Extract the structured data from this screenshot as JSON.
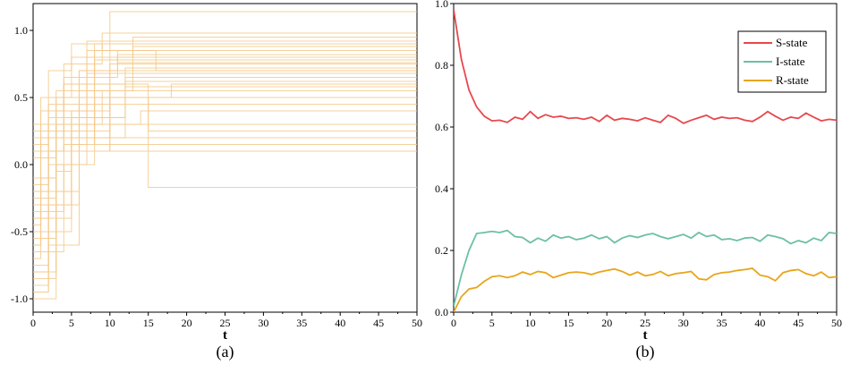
{
  "chart_data": [
    {
      "type": "line",
      "panel_label": "(a)",
      "xlabel": "t",
      "ylabel": "",
      "xlim": [
        0,
        50
      ],
      "ylim": [
        -1.1,
        1.2
      ],
      "xticks": [
        "0",
        "5",
        "10",
        "15",
        "20",
        "25",
        "30",
        "35",
        "40",
        "45",
        "50"
      ],
      "yticks": [
        "-1.0",
        "-0.5",
        "0.0",
        "0.5",
        "1.0"
      ],
      "line_color": "#f5c98a",
      "series_style": "step",
      "series": [
        {
          "x": [
            0,
            2,
            5,
            10,
            50
          ],
          "y": [
            -0.95,
            -0.3,
            0.4,
            0.75,
            0.75
          ]
        },
        {
          "x": [
            0,
            3,
            6,
            10,
            50
          ],
          "y": [
            -0.8,
            0.1,
            0.7,
            1.14,
            1.14
          ]
        },
        {
          "x": [
            0,
            1,
            4,
            8,
            50
          ],
          "y": [
            -0.6,
            0.2,
            0.6,
            0.9,
            0.9
          ]
        },
        {
          "x": [
            0,
            2,
            6,
            15,
            50
          ],
          "y": [
            -0.2,
            0.3,
            0.5,
            -0.17,
            -0.17
          ]
        },
        {
          "x": [
            0,
            3,
            7,
            15,
            50
          ],
          "y": [
            -0.4,
            0.0,
            0.45,
            0.25,
            0.25
          ]
        },
        {
          "x": [
            0,
            2,
            5,
            12,
            50
          ],
          "y": [
            -0.9,
            -0.5,
            0.35,
            0.62,
            0.62
          ]
        },
        {
          "x": [
            0,
            1,
            3,
            9,
            50
          ],
          "y": [
            -0.7,
            -0.1,
            0.3,
            0.55,
            0.55
          ]
        },
        {
          "x": [
            0,
            4,
            8,
            16,
            50
          ],
          "y": [
            0.1,
            0.6,
            0.85,
            0.7,
            0.7
          ]
        },
        {
          "x": [
            0,
            2,
            6,
            11,
            50
          ],
          "y": [
            -0.3,
            0.2,
            0.7,
            0.8,
            0.8
          ]
        },
        {
          "x": [
            0,
            3,
            5,
            10,
            50
          ],
          "y": [
            -1.0,
            -0.4,
            0.2,
            0.5,
            0.5
          ]
        },
        {
          "x": [
            0,
            2,
            4,
            7,
            50
          ],
          "y": [
            -0.5,
            0.1,
            0.45,
            0.68,
            0.68
          ]
        },
        {
          "x": [
            0,
            1,
            5,
            13,
            50
          ],
          "y": [
            0.2,
            0.5,
            0.8,
            0.95,
            0.95
          ]
        },
        {
          "x": [
            0,
            3,
            6,
            14,
            50
          ],
          "y": [
            -0.85,
            -0.2,
            0.3,
            0.4,
            0.4
          ]
        },
        {
          "x": [
            0,
            2,
            7,
            12,
            50
          ],
          "y": [
            -0.15,
            0.35,
            0.6,
            0.72,
            0.72
          ]
        },
        {
          "x": [
            0,
            4,
            8,
            18,
            50
          ],
          "y": [
            -0.65,
            0.0,
            0.5,
            0.6,
            0.6
          ]
        },
        {
          "x": [
            0,
            2,
            5,
            9,
            50
          ],
          "y": [
            0.3,
            0.7,
            0.9,
            0.85,
            0.85
          ]
        },
        {
          "x": [
            0,
            1,
            3,
            6,
            50
          ],
          "y": [
            -0.45,
            0.05,
            0.4,
            0.2,
            0.2
          ]
        },
        {
          "x": [
            0,
            3,
            6,
            10,
            50
          ],
          "y": [
            -0.25,
            0.25,
            0.55,
            0.1,
            0.1
          ]
        },
        {
          "x": [
            0,
            2,
            5,
            8,
            50
          ],
          "y": [
            -0.75,
            -0.3,
            0.15,
            0.78,
            0.78
          ]
        },
        {
          "x": [
            0,
            1,
            4,
            11,
            50
          ],
          "y": [
            0.05,
            0.4,
            0.65,
            0.82,
            0.82
          ]
        },
        {
          "x": [
            0,
            3,
            5,
            12,
            50
          ],
          "y": [
            -0.55,
            -0.05,
            0.35,
            0.65,
            0.65
          ]
        },
        {
          "x": [
            0,
            2,
            6,
            10,
            50
          ],
          "y": [
            -0.95,
            -0.6,
            0.1,
            0.3,
            0.3
          ]
        },
        {
          "x": [
            0,
            4,
            7,
            13,
            50
          ],
          "y": [
            -0.35,
            0.15,
            0.55,
            0.88,
            0.88
          ]
        },
        {
          "x": [
            0,
            2,
            4,
            9,
            50
          ],
          "y": [
            0.15,
            0.45,
            0.75,
            0.98,
            0.98
          ]
        },
        {
          "x": [
            0,
            3,
            8,
            15,
            50
          ],
          "y": [
            -0.1,
            0.3,
            0.6,
            0.45,
            0.45
          ]
        },
        {
          "x": [
            0,
            1,
            5,
            10,
            50
          ],
          "y": [
            -0.6,
            -0.2,
            0.25,
            0.7,
            0.7
          ]
        },
        {
          "x": [
            0,
            2,
            6,
            12,
            50
          ],
          "y": [
            -0.8,
            -0.3,
            0.2,
            0.58,
            0.58
          ]
        },
        {
          "x": [
            0,
            3,
            7,
            11,
            50
          ],
          "y": [
            0.25,
            0.55,
            0.85,
            0.76,
            0.76
          ]
        },
        {
          "x": [
            0,
            2,
            5,
            8,
            50
          ],
          "y": [
            -0.4,
            0.0,
            0.4,
            0.15,
            0.15
          ]
        },
        {
          "x": [
            0,
            1,
            3,
            7,
            50
          ],
          "y": [
            -0.2,
            0.2,
            0.5,
            0.92,
            0.92
          ]
        }
      ]
    },
    {
      "type": "line",
      "panel_label": "(b)",
      "xlabel": "t",
      "ylabel": "",
      "xlim": [
        0,
        50
      ],
      "ylim": [
        0,
        1.0
      ],
      "xticks": [
        "0",
        "5",
        "10",
        "15",
        "20",
        "25",
        "30",
        "35",
        "40",
        "45",
        "50"
      ],
      "yticks": [
        "0.0",
        "0.2",
        "0.4",
        "0.6",
        "0.8",
        "1.0"
      ],
      "legend_position": "top-right",
      "x": [
        0,
        1,
        2,
        3,
        4,
        5,
        6,
        7,
        8,
        9,
        10,
        11,
        12,
        13,
        14,
        15,
        16,
        17,
        18,
        19,
        20,
        21,
        22,
        23,
        24,
        25,
        26,
        27,
        28,
        29,
        30,
        31,
        32,
        33,
        34,
        35,
        36,
        37,
        38,
        39,
        40,
        41,
        42,
        43,
        44,
        45,
        46,
        47,
        48,
        49,
        50
      ],
      "series": [
        {
          "name": "S-state",
          "color": "#e8474c",
          "values": [
            0.98,
            0.82,
            0.72,
            0.665,
            0.635,
            0.62,
            0.622,
            0.615,
            0.632,
            0.625,
            0.65,
            0.628,
            0.64,
            0.632,
            0.635,
            0.628,
            0.63,
            0.625,
            0.632,
            0.618,
            0.638,
            0.622,
            0.628,
            0.625,
            0.62,
            0.63,
            0.622,
            0.615,
            0.638,
            0.628,
            0.612,
            0.622,
            0.63,
            0.638,
            0.625,
            0.632,
            0.628,
            0.63,
            0.622,
            0.618,
            0.632,
            0.65,
            0.635,
            0.622,
            0.632,
            0.628,
            0.645,
            0.632,
            0.62,
            0.625,
            0.622
          ]
        },
        {
          "name": "I-state",
          "color": "#6dbfa6",
          "values": [
            0.02,
            0.12,
            0.2,
            0.255,
            0.258,
            0.262,
            0.258,
            0.265,
            0.245,
            0.242,
            0.225,
            0.24,
            0.23,
            0.25,
            0.24,
            0.245,
            0.235,
            0.24,
            0.25,
            0.238,
            0.245,
            0.225,
            0.24,
            0.248,
            0.242,
            0.25,
            0.255,
            0.245,
            0.238,
            0.245,
            0.252,
            0.24,
            0.258,
            0.245,
            0.25,
            0.235,
            0.238,
            0.232,
            0.24,
            0.242,
            0.23,
            0.25,
            0.245,
            0.238,
            0.222,
            0.232,
            0.225,
            0.24,
            0.232,
            0.258,
            0.255
          ]
        },
        {
          "name": "R-state",
          "color": "#e8a51c",
          "values": [
            0.0,
            0.05,
            0.075,
            0.08,
            0.1,
            0.115,
            0.118,
            0.112,
            0.118,
            0.13,
            0.122,
            0.132,
            0.128,
            0.112,
            0.12,
            0.128,
            0.13,
            0.128,
            0.122,
            0.13,
            0.135,
            0.14,
            0.132,
            0.12,
            0.13,
            0.118,
            0.122,
            0.132,
            0.118,
            0.125,
            0.128,
            0.132,
            0.108,
            0.105,
            0.122,
            0.128,
            0.13,
            0.135,
            0.138,
            0.142,
            0.12,
            0.115,
            0.102,
            0.128,
            0.135,
            0.138,
            0.125,
            0.118,
            0.13,
            0.112,
            0.115
          ]
        }
      ]
    }
  ]
}
